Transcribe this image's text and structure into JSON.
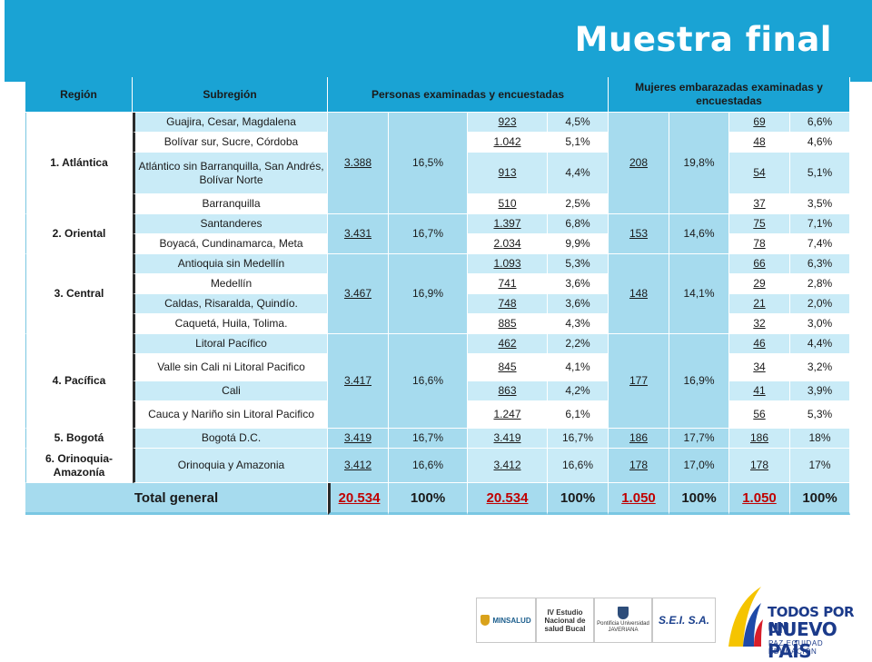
{
  "title": "Muestra final",
  "headers": {
    "region": "Región",
    "subregion": "Subregión",
    "personas": "Personas examinadas y encuestadas",
    "mujeres": "Mujeres embarazadas examinadas y encuestadas"
  },
  "regions": [
    {
      "name": "1. Atlántica",
      "total": "3.388",
      "pct": "16,5%",
      "preg_total": "208",
      "preg_pct": "19,8%",
      "subs": [
        {
          "name": "Guajira, Cesar, Magdalena",
          "n": "923",
          "pct": "4,5%",
          "pn": "69",
          "ppct": "6,6%"
        },
        {
          "name": "Bolívar sur, Sucre, Córdoba",
          "n": "1.042",
          "pct": "5,1%",
          "pn": "48",
          "ppct": "4,6%"
        },
        {
          "name": "Atlántico sin Barranquilla, San Andrés, Bolívar Norte",
          "n": "913",
          "pct": "4,4%",
          "pn": "54",
          "ppct": "5,1%"
        },
        {
          "name": "Barranquilla",
          "n": "510",
          "pct": "2,5%",
          "pn": "37",
          "ppct": "3,5%"
        }
      ]
    },
    {
      "name": "2. Oriental",
      "total": "3.431",
      "pct": "16,7%",
      "preg_total": "153",
      "preg_pct": "14,6%",
      "subs": [
        {
          "name": "Santanderes",
          "n": "1.397",
          "pct": "6,8%",
          "pn": "75",
          "ppct": "7,1%"
        },
        {
          "name": "Boyacá, Cundinamarca, Meta",
          "n": "2.034",
          "pct": "9,9%",
          "pn": "78",
          "ppct": "7,4%"
        }
      ]
    },
    {
      "name": "3. Central",
      "total": "3.467",
      "pct": "16,9%",
      "preg_total": "148",
      "preg_pct": "14,1%",
      "subs": [
        {
          "name": "Antioquia sin Medellín",
          "n": "1.093",
          "pct": "5,3%",
          "pn": "66",
          "ppct": "6,3%"
        },
        {
          "name": "Medellín",
          "n": "741",
          "pct": "3,6%",
          "pn": "29",
          "ppct": "2,8%"
        },
        {
          "name": "Caldas, Risaralda, Quindío.",
          "n": "748",
          "pct": "3,6%",
          "pn": "21",
          "ppct": "2,0%"
        },
        {
          "name": "Caquetá,  Huila, Tolima.",
          "n": "885",
          "pct": "4,3%",
          "pn": "32",
          "ppct": "3,0%"
        }
      ]
    },
    {
      "name": "4. Pacífica",
      "total": "3.417",
      "pct": "16,6%",
      "preg_total": "177",
      "preg_pct": "16,9%",
      "subs": [
        {
          "name": "Litoral Pacífico",
          "n": "462",
          "pct": "2,2%",
          "pn": "46",
          "ppct": "4,4%"
        },
        {
          "name": "Valle sin Cali ni Litoral  Pacifico",
          "n": "845",
          "pct": "4,1%",
          "pn": "34",
          "ppct": "3,2%"
        },
        {
          "name": "Cali",
          "n": "863",
          "pct": "4,2%",
          "pn": "41",
          "ppct": "3,9%"
        },
        {
          "name": "Cauca y Nariño sin Litoral Pacifico",
          "n": "1.247",
          "pct": "6,1%",
          "pn": "56",
          "ppct": "5,3%"
        }
      ]
    },
    {
      "name": "5. Bogotá",
      "total": "3.419",
      "pct": "16,7%",
      "preg_total": "186",
      "preg_pct": "17,7%",
      "subs": [
        {
          "name": "Bogotá D.C.",
          "n": "3.419",
          "pct": "16,7%",
          "pn": "186",
          "ppct": "18%"
        }
      ]
    },
    {
      "name": "6. Orinoquia-Amazonía",
      "total": "3.412",
      "pct": "16,6%",
      "preg_total": "178",
      "preg_pct": "17,0%",
      "subs": [
        {
          "name": "Orinoquia y Amazonia",
          "n": "3.412",
          "pct": "16,6%",
          "pn": "178",
          "ppct": "17%"
        }
      ]
    }
  ],
  "total": {
    "label": "Total general",
    "total": "20.534",
    "pct": "100%",
    "n": "20.534",
    "npct": "100%",
    "preg_total": "1.050",
    "preg_pct": "100%",
    "pn": "1.050",
    "ppct": "100%"
  },
  "footer": {
    "minsalud": "MINSALUD",
    "estudio": "IV Estudio Nacional de salud Bucal",
    "javeriana": "Pontificia Universidad JAVERIANA",
    "sei": "S.E.I. S.A.",
    "brand_line1": "TODOS POR UN",
    "brand_line2": "NUEVO PAÍS",
    "brand_line3": "PAZ  EQUIDAD  EDUCACIÓN"
  },
  "colors": {
    "accent": "#1aa3d4",
    "light_row": "#c9ebf7",
    "dark_row": "#a6dbee",
    "total_red": "#c00000"
  }
}
